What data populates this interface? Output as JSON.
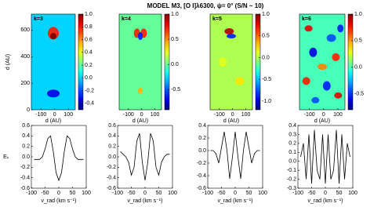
{
  "title": "MODEL M3, [O I]λ6300, ψ= 0° (S/N ~ 10)",
  "chart_data": [
    {
      "type": "heatmap",
      "label": "k=3",
      "xlabel": "d (AU)",
      "ylabel": "d (AU)",
      "xlim": [
        -170,
        150
      ],
      "xticks": [
        -100,
        0,
        100
      ],
      "ylim": [
        0,
        720
      ],
      "yticks": [
        0,
        200,
        400,
        600
      ],
      "clim": [
        -0.5,
        1.0
      ],
      "cticks": [
        {
          "value": 1,
          "label": "1.0"
        },
        0.8,
        0.6,
        0.4,
        0.2,
        {
          "value": 0,
          "label": "0.0"
        },
        -0.2,
        -0.4
      ]
    },
    {
      "type": "heatmap",
      "label": "k=4",
      "xlabel": "d (AU)",
      "xlim": [
        -170,
        150
      ],
      "xticks": [
        -100,
        0,
        100
      ],
      "ylim": [
        0,
        720
      ],
      "clim": [
        -0.9,
        1.0
      ],
      "cticks": [
        {
          "value": 1,
          "label": "1.0"
        },
        0.5,
        {
          "value": 0,
          "label": "0.0"
        },
        -0.5
      ]
    },
    {
      "type": "heatmap",
      "label": "k=5",
      "xlabel": "d (AU)",
      "xlim": [
        -170,
        150
      ],
      "xticks": [
        -100,
        0,
        100
      ],
      "ylim": [
        0,
        720
      ],
      "clim": [
        -1.2,
        1.0
      ],
      "cticks": [
        {
          "value": 1,
          "label": "1.0"
        },
        0.5,
        {
          "value": 0,
          "label": "0.0"
        },
        -0.5,
        {
          "value": -1,
          "label": "-1.0"
        }
      ]
    },
    {
      "type": "heatmap",
      "label": "k=6",
      "xlabel": "d (AU)",
      "xlim": [
        -170,
        150
      ],
      "xticks": [
        -100,
        0,
        100
      ],
      "ylim": [
        0,
        720
      ],
      "clim": [
        -0.8,
        1.0
      ],
      "cticks": [
        {
          "value": 1,
          "label": "1.0"
        },
        0.5,
        {
          "value": 0,
          "label": "0.0"
        },
        -0.5
      ]
    },
    {
      "type": "line",
      "ylabel": "Eₖ",
      "xlabel": "v_rad (km s⁻¹)",
      "xlim": [
        -100,
        100
      ],
      "xticks": [
        -100,
        -50,
        0,
        50,
        100
      ],
      "ylim": [
        -0.6,
        0.6
      ],
      "yticks": [
        -0.6,
        -0.4,
        -0.2,
        {
          "value": 0,
          "label": "0.0"
        },
        0.2,
        0.4,
        0.6
      ],
      "x": [
        -90,
        -80,
        -70,
        -60,
        -50,
        -40,
        -30,
        -20,
        -10,
        0,
        10,
        20,
        30,
        40,
        50,
        60,
        70,
        80,
        90
      ],
      "values": [
        -0.05,
        -0.05,
        -0.05,
        0.0,
        0.15,
        0.35,
        0.4,
        0.1,
        -0.3,
        -0.45,
        -0.3,
        0.1,
        0.4,
        0.35,
        0.15,
        0.0,
        -0.05,
        -0.05,
        -0.05
      ]
    },
    {
      "type": "line",
      "xlabel": "v_rad (km s⁻¹)",
      "xlim": [
        -100,
        100
      ],
      "xticks": [
        -100,
        -50,
        0,
        50,
        100
      ],
      "ylim": [
        -0.6,
        0.6
      ],
      "yticks": [
        -0.6,
        -0.4,
        -0.2,
        {
          "value": 0,
          "label": "0.0"
        },
        0.2,
        0.4,
        0.6
      ],
      "x": [
        -90,
        -80,
        -70,
        -60,
        -50,
        -40,
        -30,
        -20,
        -10,
        0,
        10,
        20,
        30,
        40,
        50,
        60,
        70,
        80,
        90
      ],
      "values": [
        0.1,
        0.05,
        0.0,
        -0.1,
        -0.35,
        -0.2,
        0.3,
        0.45,
        -0.1,
        -0.45,
        -0.1,
        0.45,
        0.3,
        -0.2,
        -0.35,
        -0.1,
        0.0,
        0.05,
        0.05
      ]
    },
    {
      "type": "line",
      "xlabel": "v_rad (km s⁻¹)",
      "xlim": [
        -100,
        100
      ],
      "xticks": [
        -100,
        -50,
        0,
        50,
        100
      ],
      "ylim": [
        -0.6,
        0.4
      ],
      "yticks": [
        -0.6,
        -0.4,
        -0.2,
        {
          "value": 0,
          "label": "0.0"
        },
        0.2,
        0.4
      ],
      "x": [
        -90,
        -80,
        -70,
        -60,
        -50,
        -40,
        -30,
        -20,
        -10,
        0,
        10,
        20,
        30,
        40,
        50,
        60,
        70,
        80,
        90
      ],
      "values": [
        0.0,
        0.0,
        -0.05,
        -0.2,
        0.05,
        0.3,
        0.0,
        -0.45,
        -0.1,
        0.3,
        -0.1,
        -0.45,
        0.0,
        0.3,
        0.05,
        -0.2,
        -0.05,
        0.0,
        0.0
      ]
    },
    {
      "type": "line",
      "xlabel": "v_rad (km s⁻¹)",
      "xlim": [
        -100,
        100
      ],
      "xticks": [
        -100,
        -50,
        0,
        50,
        100
      ],
      "ylim": [
        -0.3,
        0.4
      ],
      "yticks": [
        -0.3,
        -0.2,
        -0.1,
        {
          "value": 0,
          "label": "0.0"
        },
        0.1,
        0.2,
        0.3,
        0.4
      ],
      "x": [
        -90,
        -80,
        -70,
        -60,
        -50,
        -40,
        -30,
        -20,
        -10,
        0,
        10,
        20,
        30,
        40,
        50,
        60,
        70,
        80,
        90
      ],
      "values": [
        0.05,
        0.2,
        -0.2,
        0.3,
        -0.25,
        0.35,
        -0.1,
        -0.2,
        0.3,
        -0.25,
        0.3,
        -0.2,
        -0.1,
        0.35,
        -0.25,
        0.3,
        -0.2,
        0.2,
        0.05
      ]
    }
  ]
}
